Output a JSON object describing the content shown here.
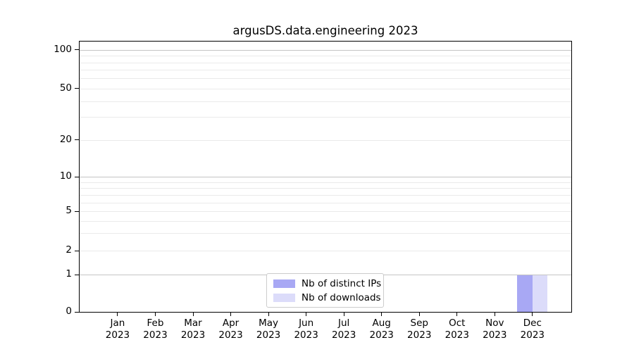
{
  "chart_data": {
    "type": "bar",
    "title": "argusDS.data.engineering 2023",
    "categories": [
      "Jan",
      "Feb",
      "Mar",
      "Apr",
      "May",
      "Jun",
      "Jul",
      "Aug",
      "Sep",
      "Oct",
      "Nov",
      "Dec"
    ],
    "category_year": "2023",
    "series": [
      {
        "name": "Nb of distinct IPs",
        "color": "#a8a8f4",
        "values": [
          0,
          0,
          0,
          0,
          0,
          0,
          0,
          0,
          0,
          0,
          0,
          1
        ]
      },
      {
        "name": "Nb of downloads",
        "color": "#dcdcfa",
        "values": [
          0,
          0,
          0,
          0,
          0,
          0,
          0,
          0,
          0,
          0,
          0,
          1
        ]
      }
    ],
    "xlabel": "",
    "ylabel": "",
    "y_axis": {
      "tick_labels": [
        "100",
        "50",
        "20",
        "10",
        "5",
        "2",
        "1",
        "0"
      ],
      "tick_values": [
        100,
        50,
        20,
        10,
        5,
        2,
        1,
        0
      ],
      "scale": "symlog-like",
      "ylim": [
        0,
        115
      ],
      "scale_anchors": [
        [
          0,
          1.0
        ],
        [
          1,
          0.862
        ],
        [
          2,
          0.7738
        ],
        [
          5,
          0.6286
        ],
        [
          10,
          0.5013
        ],
        [
          20,
          0.3636
        ],
        [
          50,
          0.174
        ],
        [
          100,
          0.0312
        ]
      ],
      "major_gridline_values": [
        1,
        10,
        100
      ],
      "minor_gridline_values": [
        2,
        3,
        4,
        5,
        6,
        7,
        8,
        9,
        20,
        30,
        40,
        50,
        60,
        70,
        80,
        90
      ]
    },
    "x_axis": {
      "first_tick_frac": 0.0773,
      "step_frac": 0.0767,
      "bar_width_frac": 0.0308
    },
    "legend": {
      "position": "lower center"
    },
    "grid": true
  },
  "colors": {
    "bar_distinct_ips": "#a8a8f4",
    "bar_downloads": "#dcdcfa",
    "grid_major": "#c4c4c4",
    "grid_minor": "#eaeaea",
    "axis": "#000000",
    "background": "#ffffff"
  }
}
